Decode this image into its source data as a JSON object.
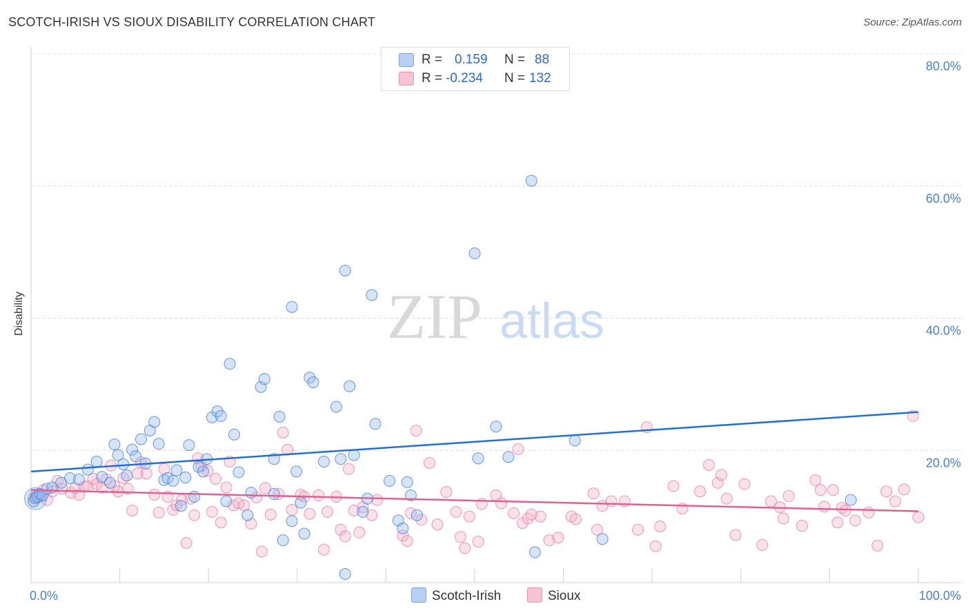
{
  "title": "SCOTCH-IRISH VS SIOUX DISABILITY CORRELATION CHART",
  "source": "Source: ZipAtlas.com",
  "legend": {
    "r_label": "R =",
    "n_label": "N =",
    "rows": [
      {
        "r": "0.159",
        "n": "88"
      },
      {
        "r": "-0.234",
        "n": "132"
      }
    ]
  },
  "bottom_legend": [
    "Scotch-Irish",
    "Sioux"
  ],
  "watermark": {
    "zip": "ZIP",
    "atlas": "atlas"
  },
  "chart_data": {
    "type": "scatter",
    "title": "SCOTCH-IRISH VS SIOUX DISABILITY CORRELATION CHART",
    "xlabel": "",
    "ylabel": "Disability",
    "xlim": [
      0,
      100
    ],
    "ylim": [
      0,
      80
    ],
    "x_tick_labels": [
      "0.0%",
      "100.0%"
    ],
    "y_tick_labels": [
      "20.0%",
      "40.0%",
      "60.0%",
      "80.0%"
    ],
    "y_ticks": [
      20,
      40,
      60,
      80
    ],
    "grid": "horizontal dashed",
    "legend_position": "top-center",
    "colors": {
      "scotch_irish": "#1f6fd6",
      "sioux": "#e0608e",
      "axis_text": "#4a7fd0"
    },
    "series": [
      {
        "name": "Scotch-Irish",
        "trend": {
          "x": [
            0,
            100
          ],
          "y": [
            16.8,
            25.8
          ]
        },
        "points": [
          [
            0.3,
            12.3
          ],
          [
            0.5,
            12.8
          ],
          [
            0.7,
            13.0
          ],
          [
            1.0,
            13.4
          ],
          [
            1.3,
            13.2
          ],
          [
            1.8,
            14.2
          ],
          [
            2.4,
            14.4
          ],
          [
            3.4,
            15.1
          ],
          [
            4.4,
            15.8
          ],
          [
            5.4,
            15.6
          ],
          [
            6.4,
            17.1
          ],
          [
            7.4,
            18.3
          ],
          [
            8.0,
            16.0
          ],
          [
            8.9,
            15.1
          ],
          [
            9.4,
            20.9
          ],
          [
            9.8,
            19.3
          ],
          [
            10.4,
            17.9
          ],
          [
            10.8,
            16.2
          ],
          [
            11.4,
            20.1
          ],
          [
            11.8,
            19.1
          ],
          [
            12.4,
            21.7
          ],
          [
            12.9,
            18.0
          ],
          [
            13.4,
            23.0
          ],
          [
            13.9,
            24.3
          ],
          [
            14.4,
            21.0
          ],
          [
            15.0,
            15.5
          ],
          [
            15.4,
            15.8
          ],
          [
            16.0,
            15.4
          ],
          [
            16.4,
            17.0
          ],
          [
            16.9,
            11.6
          ],
          [
            17.4,
            15.9
          ],
          [
            17.8,
            20.8
          ],
          [
            18.4,
            13.0
          ],
          [
            18.9,
            17.5
          ],
          [
            19.4,
            16.8
          ],
          [
            19.8,
            18.7
          ],
          [
            20.4,
            25.0
          ],
          [
            21.0,
            25.9
          ],
          [
            21.4,
            25.2
          ],
          [
            22.4,
            33.1
          ],
          [
            22.9,
            22.4
          ],
          [
            23.4,
            16.7
          ],
          [
            22.0,
            12.3
          ],
          [
            24.4,
            10.2
          ],
          [
            24.8,
            13.6
          ],
          [
            25.9,
            29.6
          ],
          [
            26.3,
            30.8
          ],
          [
            27.4,
            13.4
          ],
          [
            27.4,
            18.7
          ],
          [
            28.0,
            25.1
          ],
          [
            28.4,
            6.4
          ],
          [
            29.4,
            41.7
          ],
          [
            29.4,
            9.3
          ],
          [
            29.9,
            16.8
          ],
          [
            30.4,
            12.1
          ],
          [
            30.8,
            7.4
          ],
          [
            31.4,
            31.0
          ],
          [
            31.8,
            30.3
          ],
          [
            33.0,
            18.3
          ],
          [
            34.4,
            26.6
          ],
          [
            34.9,
            18.7
          ],
          [
            35.4,
            1.3
          ],
          [
            35.4,
            47.2
          ],
          [
            35.9,
            29.7
          ],
          [
            36.4,
            19.3
          ],
          [
            37.4,
            10.7
          ],
          [
            37.9,
            12.7
          ],
          [
            38.4,
            43.5
          ],
          [
            38.8,
            24.0
          ],
          [
            40.4,
            15.4
          ],
          [
            41.4,
            9.4
          ],
          [
            41.9,
            8.2
          ],
          [
            42.4,
            15.2
          ],
          [
            42.8,
            13.2
          ],
          [
            43.5,
            10.2
          ],
          [
            50.0,
            49.8
          ],
          [
            50.4,
            18.8
          ],
          [
            52.4,
            23.6
          ],
          [
            53.8,
            19.0
          ],
          [
            56.4,
            60.8
          ],
          [
            56.8,
            4.6
          ],
          [
            61.3,
            21.5
          ],
          [
            64.4,
            6.6
          ],
          [
            92.4,
            12.5
          ]
        ]
      },
      {
        "name": "Sioux",
        "trend": {
          "x": [
            0,
            100
          ],
          "y": [
            14.0,
            10.8
          ]
        },
        "points": [
          [
            0.3,
            12.8
          ],
          [
            0.6,
            13.3
          ],
          [
            1.0,
            13.0
          ],
          [
            1.4,
            14.0
          ],
          [
            1.8,
            12.5
          ],
          [
            2.4,
            13.8
          ],
          [
            3.0,
            15.4
          ],
          [
            3.5,
            14.2
          ],
          [
            4.5,
            13.6
          ],
          [
            5.0,
            14.3
          ],
          [
            5.4,
            13.3
          ],
          [
            6.0,
            14.5
          ],
          [
            6.4,
            14.6
          ],
          [
            7.0,
            15.7
          ],
          [
            7.4,
            14.9
          ],
          [
            8.0,
            14.4
          ],
          [
            8.5,
            15.6
          ],
          [
            9.0,
            17.7
          ],
          [
            9.4,
            14.6
          ],
          [
            9.8,
            13.8
          ],
          [
            10.4,
            15.8
          ],
          [
            10.9,
            14.2
          ],
          [
            11.4,
            10.9
          ],
          [
            12.0,
            16.5
          ],
          [
            12.4,
            18.2
          ],
          [
            13.0,
            16.5
          ],
          [
            13.9,
            13.3
          ],
          [
            14.4,
            10.6
          ],
          [
            15.0,
            17.2
          ],
          [
            15.4,
            13.0
          ],
          [
            16.0,
            11.0
          ],
          [
            16.4,
            11.7
          ],
          [
            17.0,
            12.5
          ],
          [
            17.5,
            6.0
          ],
          [
            18.0,
            12.7
          ],
          [
            18.4,
            10.2
          ],
          [
            18.8,
            18.8
          ],
          [
            19.2,
            17.6
          ],
          [
            19.9,
            16.9
          ],
          [
            20.4,
            10.7
          ],
          [
            20.8,
            15.7
          ],
          [
            21.4,
            9.1
          ],
          [
            22.0,
            14.4
          ],
          [
            22.4,
            18.3
          ],
          [
            22.8,
            11.7
          ],
          [
            23.4,
            12.0
          ],
          [
            24.0,
            11.7
          ],
          [
            24.8,
            8.9
          ],
          [
            25.4,
            12.9
          ],
          [
            26.0,
            4.7
          ],
          [
            26.4,
            14.3
          ],
          [
            27.0,
            10.3
          ],
          [
            27.9,
            13.4
          ],
          [
            28.4,
            22.7
          ],
          [
            28.9,
            20.1
          ],
          [
            29.4,
            11.0
          ],
          [
            30.4,
            13.3
          ],
          [
            30.8,
            13.0
          ],
          [
            31.4,
            10.4
          ],
          [
            32.4,
            13.2
          ],
          [
            33.0,
            5.0
          ],
          [
            33.4,
            10.7
          ],
          [
            34.4,
            13.0
          ],
          [
            34.9,
            8.0
          ],
          [
            35.4,
            7.0
          ],
          [
            35.8,
            17.2
          ],
          [
            36.4,
            10.9
          ],
          [
            37.0,
            7.6
          ],
          [
            37.4,
            11.4
          ],
          [
            38.4,
            10.2
          ],
          [
            39.0,
            12.5
          ],
          [
            41.9,
            7.1
          ],
          [
            42.4,
            6.3
          ],
          [
            42.8,
            10.5
          ],
          [
            43.4,
            23.0
          ],
          [
            44.0,
            9.5
          ],
          [
            44.9,
            18.1
          ],
          [
            45.8,
            8.8
          ],
          [
            46.8,
            13.7
          ],
          [
            47.9,
            10.7
          ],
          [
            48.4,
            6.9
          ],
          [
            48.9,
            5.2
          ],
          [
            49.4,
            10.0
          ],
          [
            50.4,
            6.2
          ],
          [
            50.8,
            11.9
          ],
          [
            52.4,
            13.2
          ],
          [
            53.0,
            12.0
          ],
          [
            54.4,
            10.5
          ],
          [
            54.9,
            20.2
          ],
          [
            55.4,
            9.0
          ],
          [
            56.0,
            9.7
          ],
          [
            56.4,
            10.3
          ],
          [
            57.4,
            10.0
          ],
          [
            58.4,
            6.4
          ],
          [
            59.4,
            6.8
          ],
          [
            60.9,
            10.0
          ],
          [
            61.4,
            9.6
          ],
          [
            63.4,
            13.5
          ],
          [
            63.8,
            8.0
          ],
          [
            64.4,
            11.6
          ],
          [
            65.4,
            12.3
          ],
          [
            66.9,
            12.3
          ],
          [
            68.4,
            8.0
          ],
          [
            69.4,
            23.5
          ],
          [
            70.4,
            5.5
          ],
          [
            70.9,
            8.5
          ],
          [
            72.4,
            14.6
          ],
          [
            73.4,
            11.2
          ],
          [
            75.4,
            13.8
          ],
          [
            76.4,
            17.8
          ],
          [
            77.4,
            15.1
          ],
          [
            77.8,
            16.3
          ],
          [
            78.4,
            12.7
          ],
          [
            79.4,
            7.2
          ],
          [
            80.4,
            14.9
          ],
          [
            82.4,
            5.7
          ],
          [
            83.4,
            12.3
          ],
          [
            84.4,
            11.4
          ],
          [
            84.8,
            9.7
          ],
          [
            85.4,
            13.1
          ],
          [
            86.9,
            8.6
          ],
          [
            88.4,
            15.5
          ],
          [
            89.0,
            14.0
          ],
          [
            89.4,
            11.5
          ],
          [
            90.4,
            14.0
          ],
          [
            90.9,
            9.1
          ],
          [
            91.4,
            11.3
          ],
          [
            91.8,
            10.9
          ],
          [
            92.9,
            9.4
          ],
          [
            94.4,
            10.6
          ],
          [
            95.4,
            5.6
          ],
          [
            96.4,
            13.8
          ],
          [
            97.4,
            12.3
          ],
          [
            98.4,
            14.1
          ],
          [
            99.4,
            25.2
          ],
          [
            100.0,
            9.9
          ]
        ]
      }
    ]
  }
}
